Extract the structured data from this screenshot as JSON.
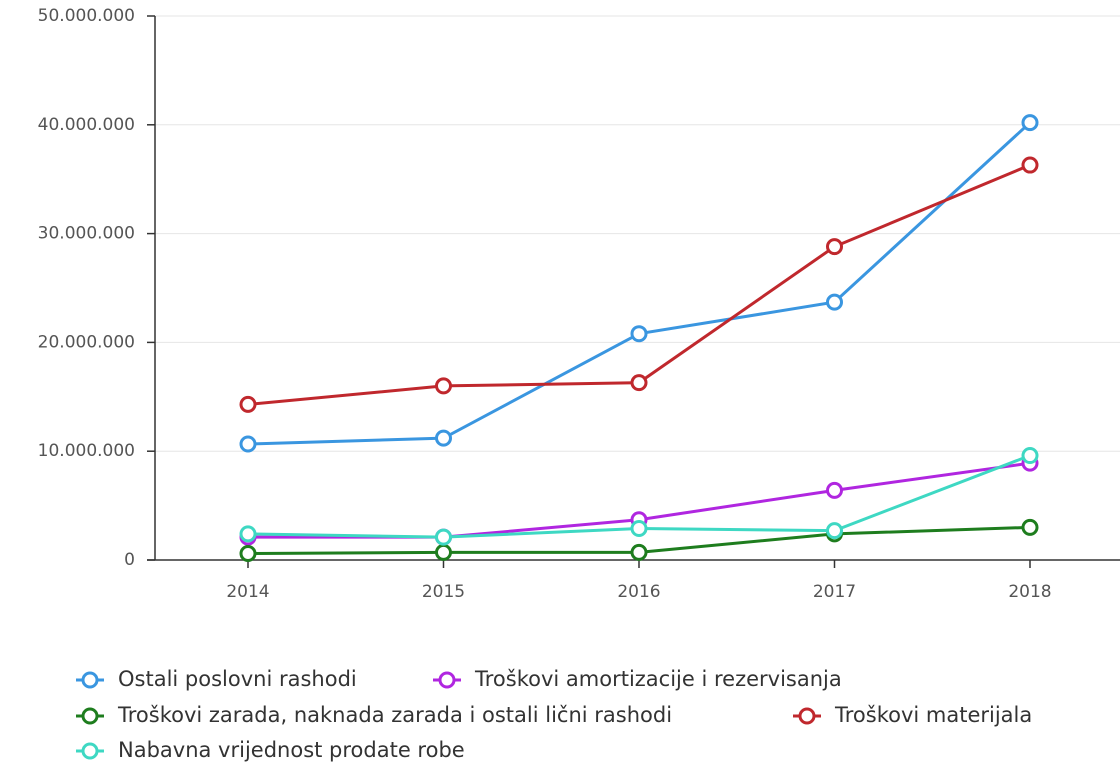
{
  "chart_data": {
    "type": "line",
    "categories": [
      "2014",
      "2015",
      "2016",
      "2017",
      "2018"
    ],
    "series": [
      {
        "name": "Ostali poslovni rashodi",
        "color": "#3a96e0",
        "values": [
          10660000,
          11200000,
          20800000,
          23700000,
          40200000
        ]
      },
      {
        "name": "Troškovi amortizacije i rezervisanja",
        "color": "#b026e0",
        "values": [
          2100000,
          2100000,
          3700000,
          6400000,
          8900000
        ]
      },
      {
        "name": "Troškovi zarada, naknada zarada i ostali lični rashodi",
        "color": "#1e7d1e",
        "values": [
          600000,
          700000,
          700000,
          2400000,
          3000000
        ]
      },
      {
        "name": "Troškovi materijala",
        "color": "#c0282d",
        "values": [
          14300000,
          16000000,
          16300000,
          28800000,
          36300000
        ]
      },
      {
        "name": "Nabavna vrijednost prodate robe",
        "color": "#3ed8c3",
        "values": [
          2400000,
          2100000,
          2900000,
          2700000,
          9600000
        ]
      }
    ],
    "ylim": [
      0,
      50000000
    ],
    "yticks": [
      0,
      {
        "value": 10000000,
        "label": "10.000.000"
      },
      {
        "value": 20000000,
        "label": "20.000.000"
      },
      {
        "value": 30000000,
        "label": "30.000.000"
      },
      {
        "value": 40000000,
        "label": "40.000.000"
      },
      {
        "value": 50000000,
        "label": "50.000.000"
      }
    ],
    "grid": true
  }
}
